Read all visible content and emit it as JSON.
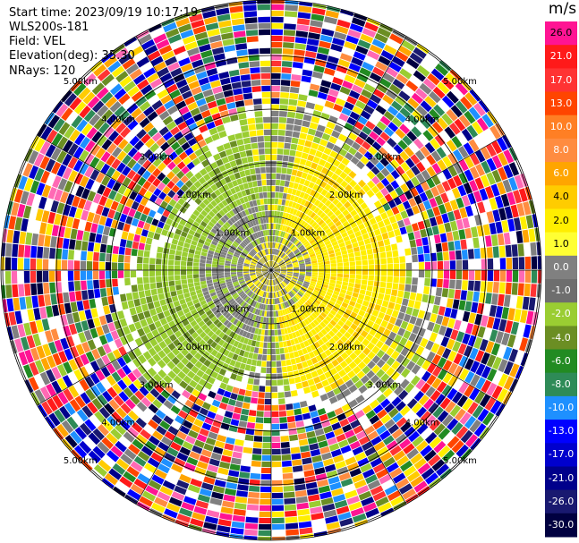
{
  "header": {
    "start_time": "Start time: 2023/09/19 10:17:19",
    "instrument": "WLS200s-181",
    "field": "Field: VEL",
    "elevation": "Elevation(deg): 35.30",
    "nrays": "NRays: 120"
  },
  "chart_data": {
    "type": "heatmap",
    "projection": "polar (PPI)",
    "field": "VEL",
    "nrays": 120,
    "range_ring_labels": [
      "1.00km",
      "2.00km",
      "3.00km",
      "4.00km",
      "5.00km"
    ],
    "range_rings_km": [
      1,
      2,
      3,
      4,
      5
    ],
    "colorbar": {
      "unit": "m/s",
      "tick_labels": [
        "26.0",
        "21.0",
        "17.0",
        "13.0",
        "10.0",
        "8.0",
        "6.0",
        "4.0",
        "2.0",
        "1.0",
        "0.0",
        "-1.0",
        "-2.0",
        "-4.0",
        "-6.0",
        "-8.0",
        "-10.0",
        "-13.0",
        "-17.0",
        "-21.0",
        "-26.0",
        "-30.0"
      ],
      "colors": [
        "#ff1493",
        "#ff1a1a",
        "#ff3333",
        "#ff4500",
        "#ff7f24",
        "#ff8c40",
        "#ffa500",
        "#ffcc00",
        "#ffee00",
        "#ffff33",
        "#808080",
        "#6e6e6e",
        "#9acd32",
        "#6b8e23",
        "#228b22",
        "#2e8b57",
        "#1e90ff",
        "#0000ff",
        "#0000cd",
        "#00008b",
        "#191970",
        "#000040"
      ]
    }
  }
}
